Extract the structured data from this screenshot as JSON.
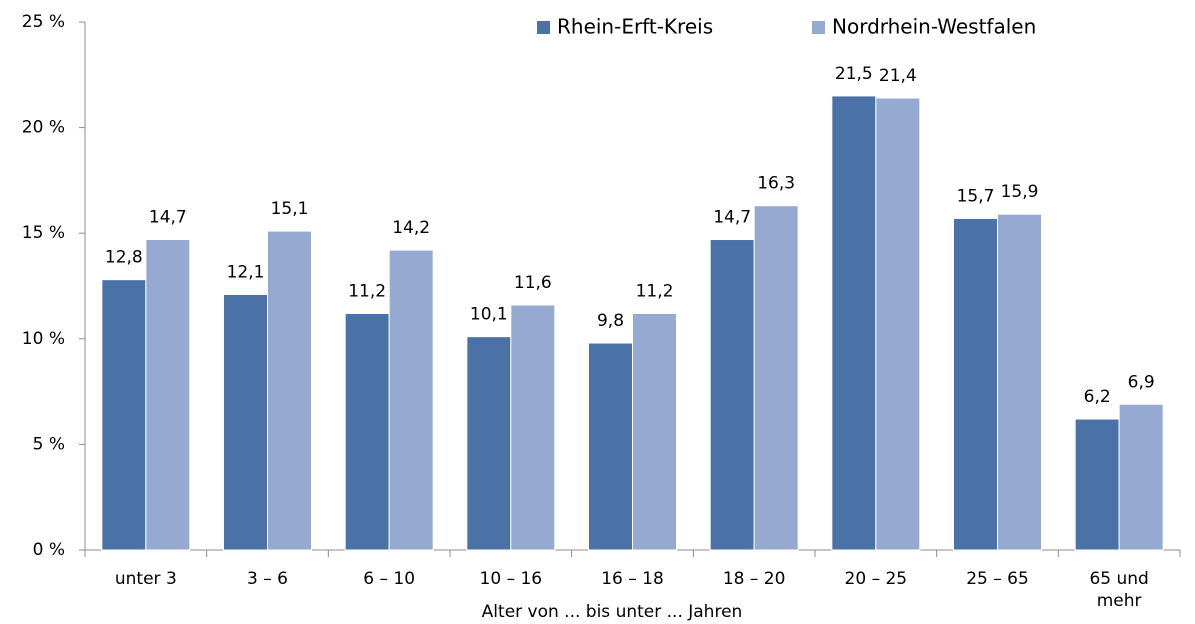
{
  "chart_data": {
    "type": "bar",
    "x_label": "Alter von ... bis unter ... Jahren",
    "categories": [
      "unter 3",
      "3 –  6",
      "6 – 10",
      "10 – 16",
      "16 – 18",
      "18 – 20",
      "20 – 25",
      "25 – 65",
      "65 und mehr"
    ],
    "series": [
      {
        "name": "Rhein-Erft-Kreis",
        "color": "#4a72a7",
        "values": [
          12.8,
          12.1,
          11.2,
          10.1,
          9.8,
          14.7,
          21.5,
          15.7,
          6.2
        ],
        "value_labels": [
          "12,8",
          "12,1",
          "11,2",
          "10,1",
          "9,8",
          "14,7",
          "21,5",
          "15,7",
          "6,2"
        ]
      },
      {
        "name": "Nordrhein-Westfalen",
        "color": "#95a9d1",
        "values": [
          14.7,
          15.1,
          14.2,
          11.6,
          11.2,
          16.3,
          21.4,
          15.9,
          6.9
        ],
        "value_labels": [
          "14,7",
          "15,1",
          "14,2",
          "11,6",
          "11,2",
          "16,3",
          "21,4",
          "15,9",
          "6,9"
        ]
      }
    ],
    "ylim": [
      0,
      25
    ],
    "yticks": [
      {
        "value": 0,
        "label": "0 %"
      },
      {
        "value": 5,
        "label": "5 %"
      },
      {
        "value": 10,
        "label": "10 %"
      },
      {
        "value": 15,
        "label": "15 %"
      },
      {
        "value": 20,
        "label": "20 %"
      },
      {
        "value": 25,
        "label": "25 %"
      }
    ],
    "grid": false
  }
}
